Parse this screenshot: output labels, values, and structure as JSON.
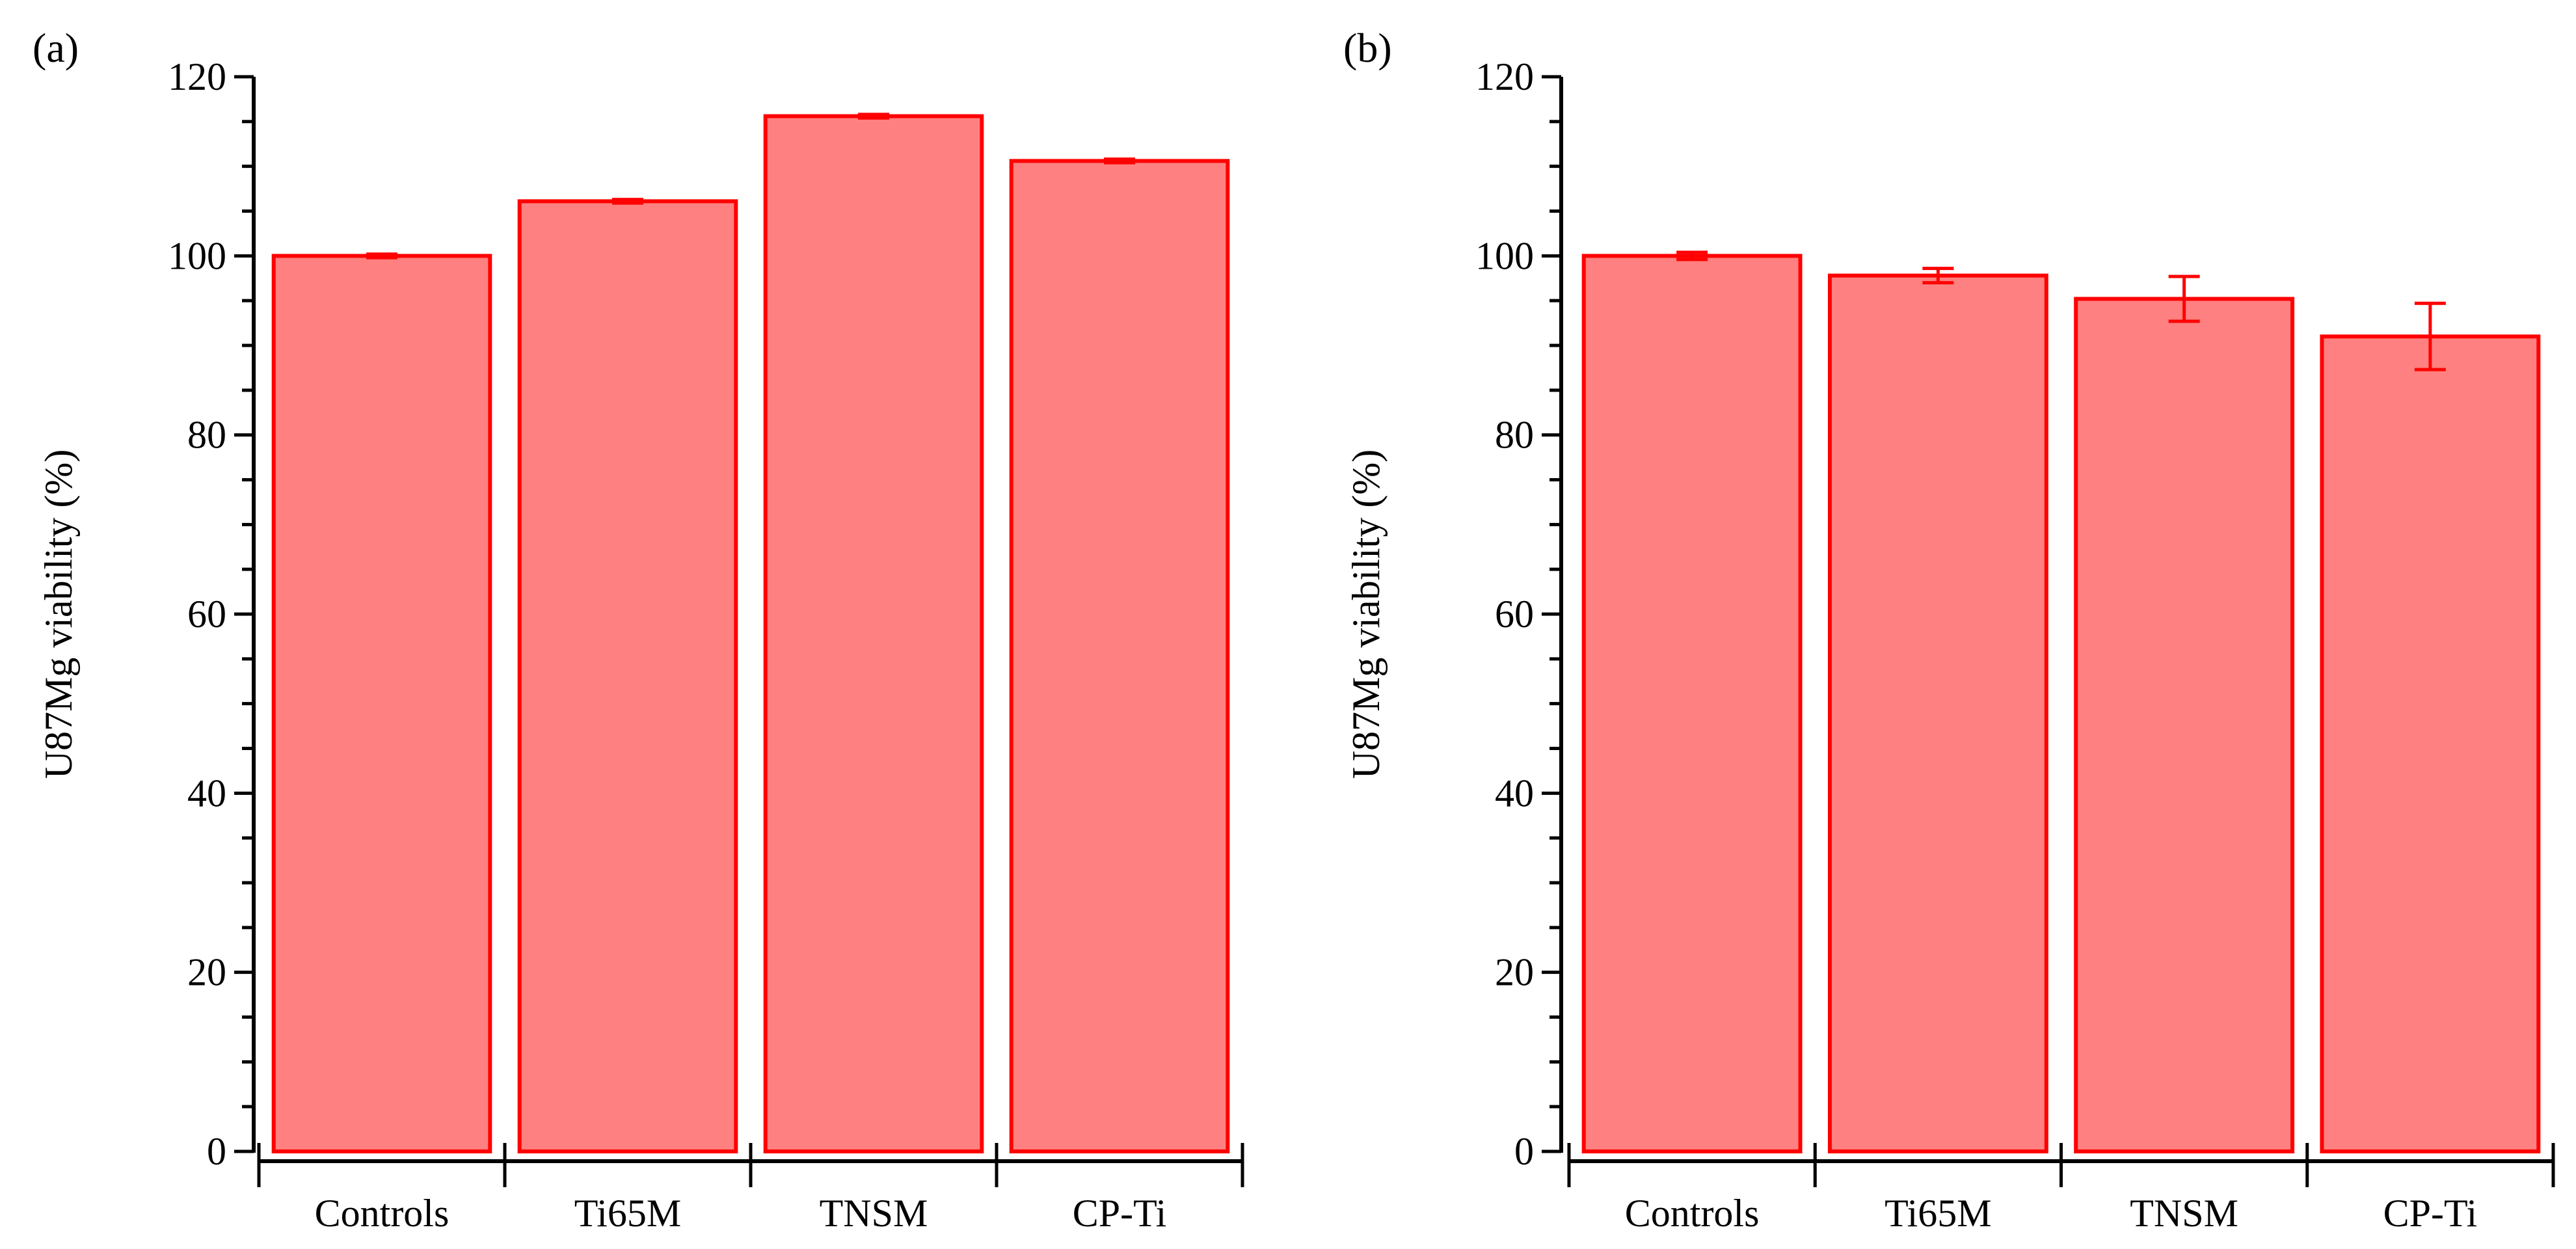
{
  "chart_data": [
    {
      "type": "bar",
      "panel_label": "(a)",
      "title": "",
      "xlabel": "",
      "ylabel": "U87Mg viability (%)",
      "ylim": [
        0,
        120
      ],
      "yticks": [
        "0",
        "20",
        "40",
        "60",
        "80",
        "100",
        "120"
      ],
      "categories": [
        "Controls",
        "Ti65M",
        "TNSM",
        "CP-Ti"
      ],
      "values": [
        100,
        106.1,
        115.6,
        110.6
      ],
      "errors": [
        0.2,
        0.2,
        0.2,
        0.2
      ],
      "bar_color": "#ff8080",
      "edge_color": "#ff0000"
    },
    {
      "type": "bar",
      "panel_label": "(b)",
      "title": "",
      "xlabel": "",
      "ylabel": "U87Mg viability (%)",
      "ylim": [
        0,
        120
      ],
      "yticks": [
        "0",
        "20",
        "40",
        "60",
        "80",
        "100",
        "120"
      ],
      "categories": [
        "Controls",
        "Ti65M",
        "TNSM",
        "CP-Ti"
      ],
      "values": [
        100,
        97.8,
        95.2,
        91.0
      ],
      "errors": [
        0.4,
        0.8,
        2.5,
        3.7
      ],
      "bar_color": "#ff8080",
      "edge_color": "#ff0000"
    }
  ]
}
